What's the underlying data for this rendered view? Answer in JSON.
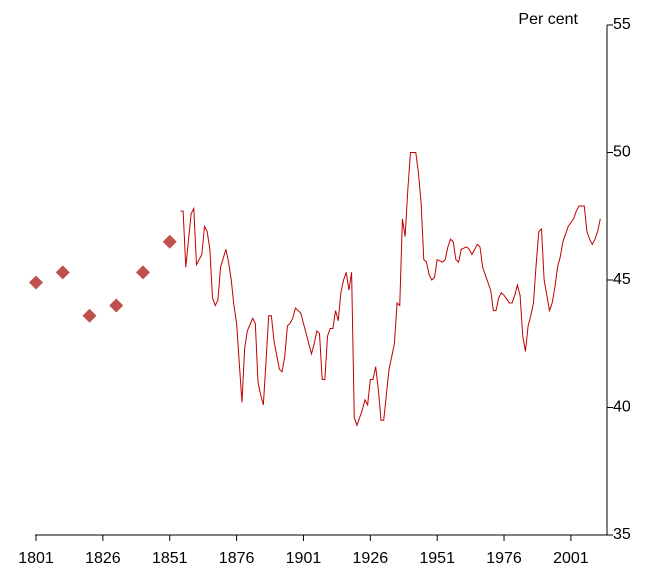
{
  "chart_data": {
    "type": "line",
    "y_label": "Per cent",
    "xlim": [
      1798,
      2014.5
    ],
    "xticks": [
      1801,
      1826,
      1851,
      1876,
      1901,
      1926,
      1951,
      1976,
      2001
    ],
    "ylim": [
      35,
      55
    ],
    "yticks": [
      35,
      40,
      45,
      50,
      55
    ],
    "y_axis_side": "right",
    "series": [
      {
        "type": "scatter",
        "marker": "diamond",
        "color": "#c0504d",
        "x": [
          1801,
          1811,
          1821,
          1831,
          1841,
          1851
        ],
        "values": [
          44.9,
          45.3,
          43.6,
          44.0,
          45.3,
          46.5
        ]
      },
      {
        "type": "line",
        "color": "#c00000",
        "x": [
          1855,
          1856,
          1857,
          1859,
          1860,
          1861,
          1863,
          1864,
          1865,
          1866,
          1867,
          1868,
          1869,
          1870,
          1872,
          1873,
          1874,
          1875,
          1876,
          1878,
          1879,
          1880,
          1882,
          1883,
          1884,
          1885,
          1886,
          1887,
          1888,
          1889,
          1890,
          1892,
          1893,
          1894,
          1895,
          1896,
          1897,
          1898,
          1900,
          1901,
          1902,
          1903,
          1904,
          1905,
          1906,
          1907,
          1908,
          1909,
          1910,
          1911,
          1912,
          1913,
          1914,
          1915,
          1916,
          1917,
          1918,
          1919,
          1920,
          1921,
          1922,
          1923,
          1924,
          1925,
          1926,
          1927,
          1928,
          1929,
          1930,
          1931,
          1932,
          1933,
          1935,
          1936,
          1937,
          1938,
          1939,
          1940,
          1941,
          1943,
          1944,
          1945,
          1946,
          1947,
          1948,
          1949,
          1950,
          1951,
          1953,
          1954,
          1955,
          1956,
          1957,
          1958,
          1959,
          1960,
          1962,
          1963,
          1964,
          1965,
          1966,
          1967,
          1968,
          1970,
          1971,
          1972,
          1973,
          1974,
          1975,
          1976,
          1978,
          1979,
          1980,
          1981,
          1982,
          1983,
          1984,
          1985,
          1986,
          1987,
          1988,
          1989,
          1990,
          1991,
          1993,
          1994,
          1995,
          1996,
          1997,
          1998,
          1999,
          2000,
          2002,
          2003,
          2004,
          2005,
          2006,
          2007,
          2008,
          2009,
          2010,
          2011,
          2012
        ],
        "values": [
          47.7,
          47.7,
          45.5,
          47.6,
          47.8,
          45.6,
          46.0,
          47.1,
          46.9,
          46.2,
          44.3,
          44.0,
          44.2,
          45.5,
          46.2,
          45.7,
          45.0,
          44.0,
          43.3,
          40.2,
          42.3,
          43.0,
          43.5,
          43.3,
          41.0,
          40.5,
          40.1,
          41.8,
          43.6,
          43.6,
          42.6,
          41.5,
          41.4,
          42.0,
          43.2,
          43.3,
          43.5,
          43.9,
          43.7,
          43.3,
          42.9,
          42.5,
          42.1,
          42.5,
          43.0,
          42.9,
          41.1,
          41.1,
          42.8,
          43.1,
          43.1,
          43.8,
          43.4,
          44.5,
          45.0,
          45.3,
          44.6,
          45.3,
          39.6,
          39.3,
          39.6,
          39.9,
          40.3,
          40.1,
          41.1,
          41.1,
          41.6,
          40.7,
          39.5,
          39.5,
          40.5,
          41.5,
          42.5,
          44.1,
          44.0,
          47.4,
          46.7,
          48.5,
          50.0,
          50.0,
          49.2,
          48.0,
          45.8,
          45.7,
          45.2,
          45.0,
          45.1,
          45.8,
          45.7,
          45.8,
          46.3,
          46.6,
          46.5,
          45.8,
          45.7,
          46.2,
          46.3,
          46.2,
          46.0,
          46.2,
          46.4,
          46.3,
          45.5,
          44.9,
          44.6,
          43.8,
          43.8,
          44.3,
          44.5,
          44.4,
          44.1,
          44.1,
          44.4,
          44.8,
          44.4,
          42.8,
          42.2,
          43.2,
          43.6,
          44.1,
          45.6,
          46.9,
          47.0,
          45.0,
          43.8,
          44.1,
          44.7,
          45.5,
          45.9,
          46.5,
          46.8,
          47.1,
          47.4,
          47.7,
          47.9,
          47.9,
          47.9,
          46.9,
          46.6,
          46.4,
          46.6,
          46.9,
          47.4
        ]
      }
    ]
  }
}
